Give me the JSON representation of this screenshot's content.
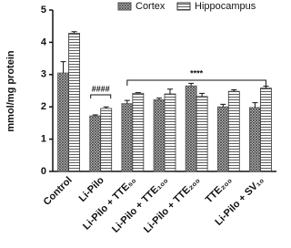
{
  "chart_data": {
    "type": "bar",
    "y_label": "mmol/mg protein",
    "categories": [
      "Control",
      "Li-Pilo",
      "Li-Pilo + TTE₅₀",
      "Li-Pilo + TTE₁₀₀",
      "Li-Pilo + TTE₂₀₀",
      "TTE₂₀₀",
      "Li-Pilo + SV₁₀"
    ],
    "series": [
      {
        "name": "Cortex",
        "color": "#555555",
        "values": [
          3.05,
          1.72,
          2.1,
          2.22,
          2.65,
          2.0,
          1.98
        ],
        "errors": [
          0.35,
          0.03,
          0.1,
          0.05,
          0.08,
          0.08,
          0.15
        ]
      },
      {
        "name": "Hippocampus",
        "color": "#333333",
        "values": [
          4.28,
          1.95,
          2.42,
          2.4,
          2.32,
          2.48,
          2.58
        ],
        "errors": [
          0.05,
          0.05,
          0.02,
          0.15,
          0.1,
          0.05,
          0.06
        ]
      }
    ],
    "annotations": [
      "####",
      "****"
    ],
    "ylim": [
      0,
      5
    ],
    "yticks": [
      0,
      1,
      2,
      3,
      4,
      5
    ]
  }
}
